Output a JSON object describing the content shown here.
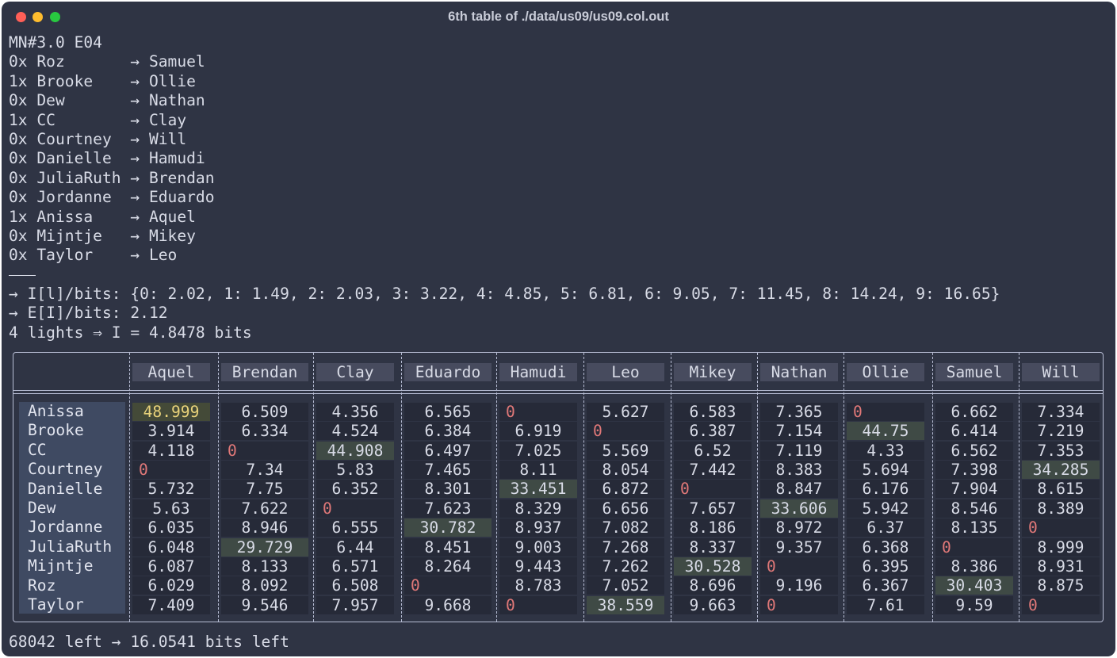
{
  "window": {
    "title": "6th table of ./data/us09/us09.col.out"
  },
  "terminal": {
    "header": "MN#3.0 E04",
    "pairings": [
      {
        "line": "0x Roz       → Samuel"
      },
      {
        "line": "1x Brooke    → Ollie"
      },
      {
        "line": "0x Dew       → Nathan"
      },
      {
        "line": "1x CC        → Clay"
      },
      {
        "line": "0x Courtney  → Will"
      },
      {
        "line": "0x Danielle  → Hamudi"
      },
      {
        "line": "0x JuliaRuth → Brendan"
      },
      {
        "line": "0x Jordanne  → Eduardo"
      },
      {
        "line": "1x Anissa    → Aquel"
      },
      {
        "line": "0x Mijntje   → Mikey"
      },
      {
        "line": "0x Taylor    → Leo"
      }
    ],
    "info_bits": "→ I[l]/bits: {0: 2.02, 1: 1.49, 2: 2.03, 3: 3.22, 4: 4.85, 5: 6.81, 6: 9.05, 7: 11.45, 8: 14.24, 9: 16.65}",
    "expected_bits": "→ E[I]/bits: 2.12",
    "lights": "4 lights ⇒ I = 4.8478 bits",
    "footer": "68042 left → 16.0541 bits left"
  },
  "table": {
    "columns": [
      "Aquel",
      "Brendan",
      "Clay",
      "Eduardo",
      "Hamudi",
      "Leo",
      "Mikey",
      "Nathan",
      "Ollie",
      "Samuel",
      "Will"
    ],
    "rows": [
      {
        "name": "Anissa",
        "values": [
          "48.999",
          "6.509",
          "4.356",
          "6.565",
          "0",
          "5.627",
          "6.583",
          "7.365",
          "0",
          "6.662",
          "7.334"
        ]
      },
      {
        "name": "Brooke",
        "values": [
          "3.914",
          "6.334",
          "4.524",
          "6.384",
          "6.919",
          "0",
          "6.387",
          "7.154",
          "44.75",
          "6.414",
          "7.219"
        ]
      },
      {
        "name": "CC",
        "values": [
          "4.118",
          "0",
          "44.908",
          "6.497",
          "7.025",
          "5.569",
          "6.52",
          "7.119",
          "4.33",
          "6.562",
          "7.353"
        ]
      },
      {
        "name": "Courtney",
        "values": [
          "0",
          "7.34",
          "5.83",
          "7.465",
          "8.11",
          "8.054",
          "7.442",
          "8.383",
          "5.694",
          "7.398",
          "34.285"
        ]
      },
      {
        "name": "Danielle",
        "values": [
          "5.732",
          "7.75",
          "6.352",
          "8.301",
          "33.451",
          "6.872",
          "0",
          "8.847",
          "6.176",
          "7.904",
          "8.615"
        ]
      },
      {
        "name": "Dew",
        "values": [
          "5.63",
          "7.622",
          "0",
          "7.623",
          "8.329",
          "6.656",
          "7.657",
          "33.606",
          "5.942",
          "8.546",
          "8.389"
        ]
      },
      {
        "name": "Jordanne",
        "values": [
          "6.035",
          "8.946",
          "6.555",
          "30.782",
          "8.937",
          "7.082",
          "8.186",
          "8.972",
          "6.37",
          "8.135",
          "0"
        ]
      },
      {
        "name": "JuliaRuth",
        "values": [
          "6.048",
          "29.729",
          "6.44",
          "8.451",
          "9.003",
          "7.268",
          "8.337",
          "9.357",
          "6.368",
          "0",
          "8.999"
        ]
      },
      {
        "name": "Mijntje",
        "values": [
          "6.087",
          "8.133",
          "6.571",
          "8.264",
          "9.443",
          "7.262",
          "30.528",
          "0",
          "6.395",
          "8.386",
          "8.931"
        ]
      },
      {
        "name": "Roz",
        "values": [
          "6.029",
          "8.092",
          "6.508",
          "0",
          "8.783",
          "7.052",
          "8.696",
          "9.196",
          "6.367",
          "30.403",
          "8.875"
        ]
      },
      {
        "name": "Taylor",
        "values": [
          "7.409",
          "9.546",
          "7.957",
          "9.668",
          "0",
          "38.559",
          "9.663",
          "0",
          "7.61",
          "9.59",
          "0"
        ]
      }
    ],
    "colors": {
      "zero": "#e07878",
      "highlight_bg": "#3f4a45",
      "gold_fg": "#e8d27a",
      "header_bg": "#474b5e",
      "rowlabel_bg": "#3f4a62"
    }
  }
}
